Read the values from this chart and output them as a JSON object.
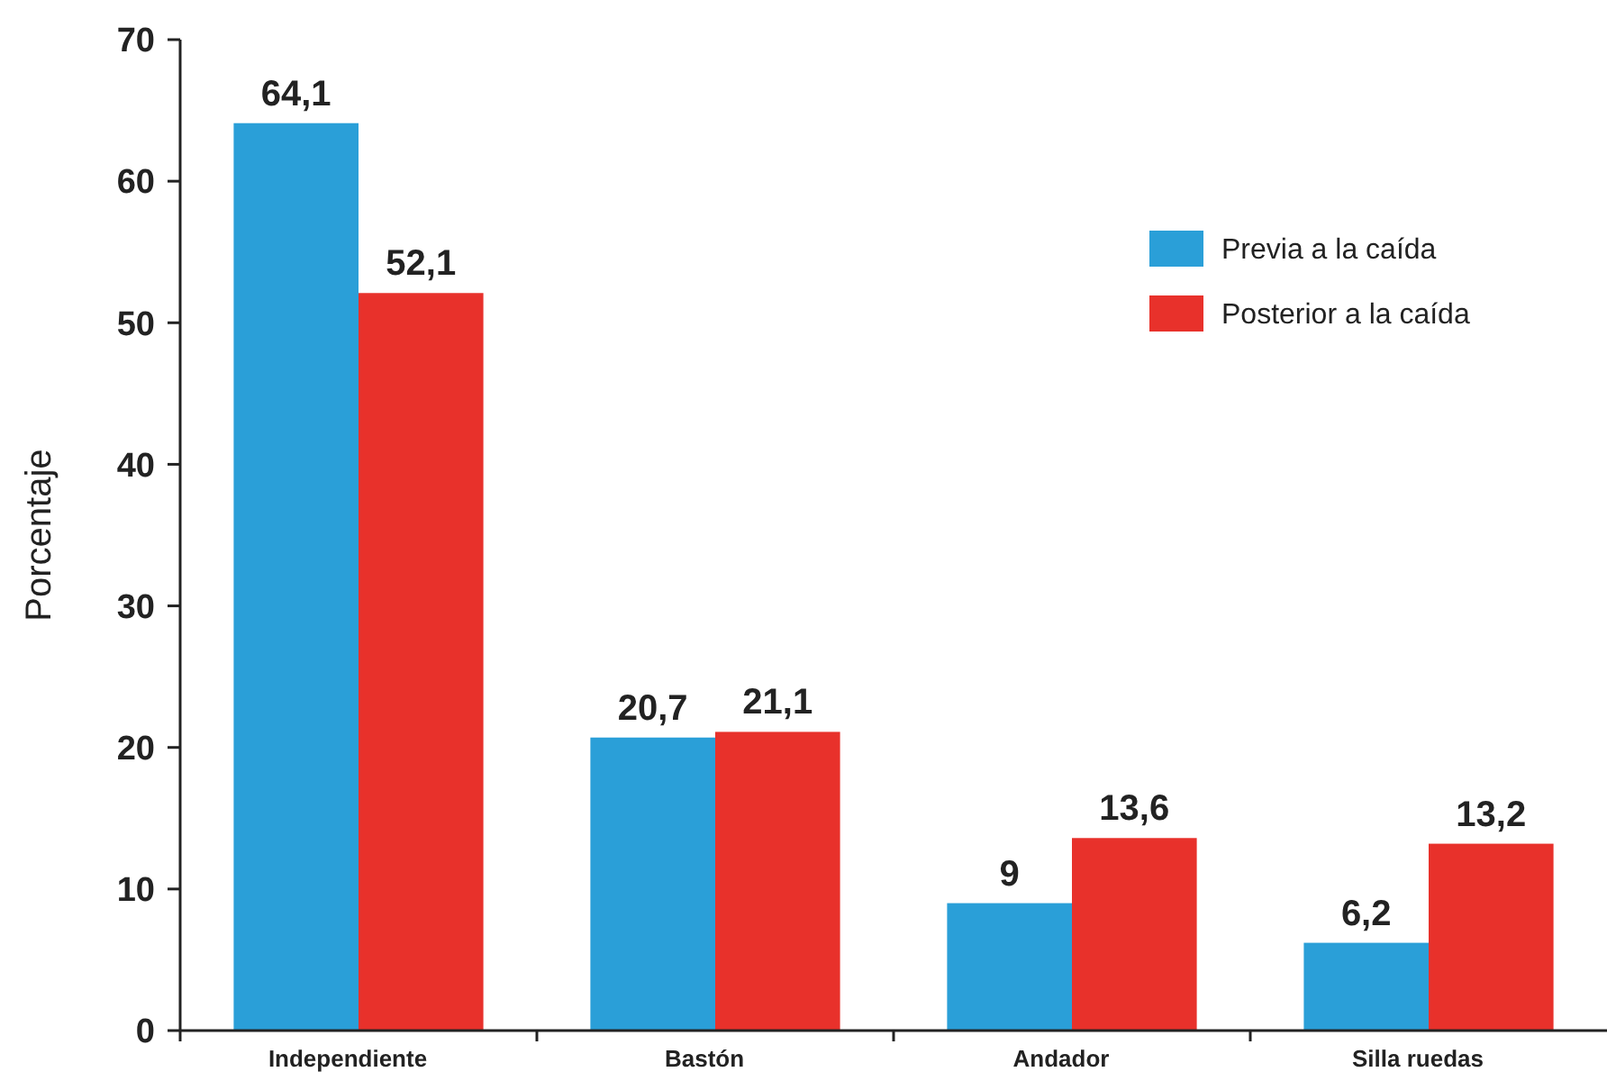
{
  "chart_data": {
    "type": "bar",
    "ylabel": "Porcentaje",
    "categories": [
      "Independiente",
      "Bastón",
      "Andador",
      "Silla ruedas"
    ],
    "series": [
      {
        "name": "Previa a la caída",
        "color": "#2a9fd8",
        "values": [
          64.1,
          20.7,
          9,
          6.2
        ],
        "value_labels": [
          "64,1",
          "20,7",
          "9",
          "6,2"
        ]
      },
      {
        "name": "Posterior a la caída",
        "color": "#e8312b",
        "values": [
          52.1,
          21.1,
          13.6,
          13.2
        ],
        "value_labels": [
          "52,1",
          "21,1",
          "13,6",
          "13,2"
        ]
      }
    ],
    "ylim": [
      0,
      70
    ],
    "yticks": [
      0,
      10,
      20,
      30,
      40,
      50,
      60,
      70
    ],
    "grid": false,
    "legend": "top right"
  }
}
